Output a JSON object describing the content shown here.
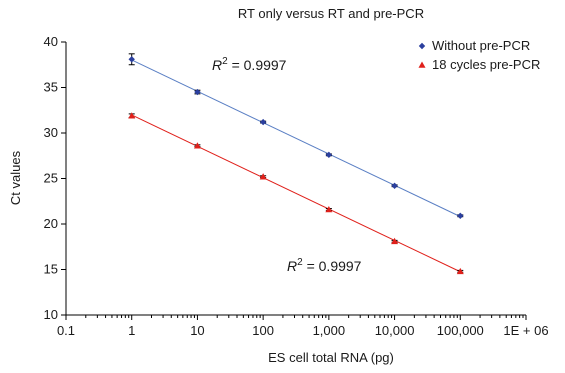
{
  "chart_data": {
    "type": "scatter",
    "title": "RT only versus  RT and pre-PCR",
    "xlabel": "ES cell total RNA (pg)",
    "ylabel": "Ct values",
    "x_scale": "log",
    "xlim": [
      0.1,
      1000000
    ],
    "ylim": [
      10,
      40
    ],
    "x_ticks": [
      0.1,
      1,
      10,
      100,
      1000,
      10000,
      100000,
      1000000
    ],
    "x_tick_labels": [
      "0.1",
      "1",
      "10",
      "100",
      "1,000",
      "10,000",
      "100,000",
      "1E + 06"
    ],
    "y_ticks": [
      10,
      15,
      20,
      25,
      30,
      35,
      40
    ],
    "y_tick_labels": [
      "10",
      "15",
      "20",
      "25",
      "30",
      "35",
      "40"
    ],
    "grid": false,
    "legend_position": "top-right",
    "series": [
      {
        "name": "Without pre-PCR",
        "color": "#2b3f9e",
        "line_color": "#5a7fc4",
        "marker": "diamond",
        "x": [
          1,
          10,
          100,
          1000,
          10000,
          100000
        ],
        "y": [
          38.1,
          34.5,
          31.2,
          27.6,
          24.2,
          20.9
        ],
        "error": [
          0.6,
          0.2,
          0.1,
          0.1,
          0.1,
          0.1
        ],
        "annotation": {
          "prefix": "R",
          "sup": "2",
          "suffix": " = 0.9997"
        }
      },
      {
        "name": "18 cycles pre-PCR",
        "color": "#e0201b",
        "line_color": "#e0201b",
        "marker": "triangle",
        "x": [
          1,
          10,
          100,
          1000,
          10000,
          100000
        ],
        "y": [
          31.9,
          28.6,
          25.2,
          21.6,
          18.1,
          14.8
        ],
        "error": [
          0.2,
          0.1,
          0.1,
          0.1,
          0.1,
          0.1
        ],
        "annotation": {
          "prefix": "R",
          "sup": "2",
          "suffix": " = 0.9997"
        }
      }
    ]
  }
}
